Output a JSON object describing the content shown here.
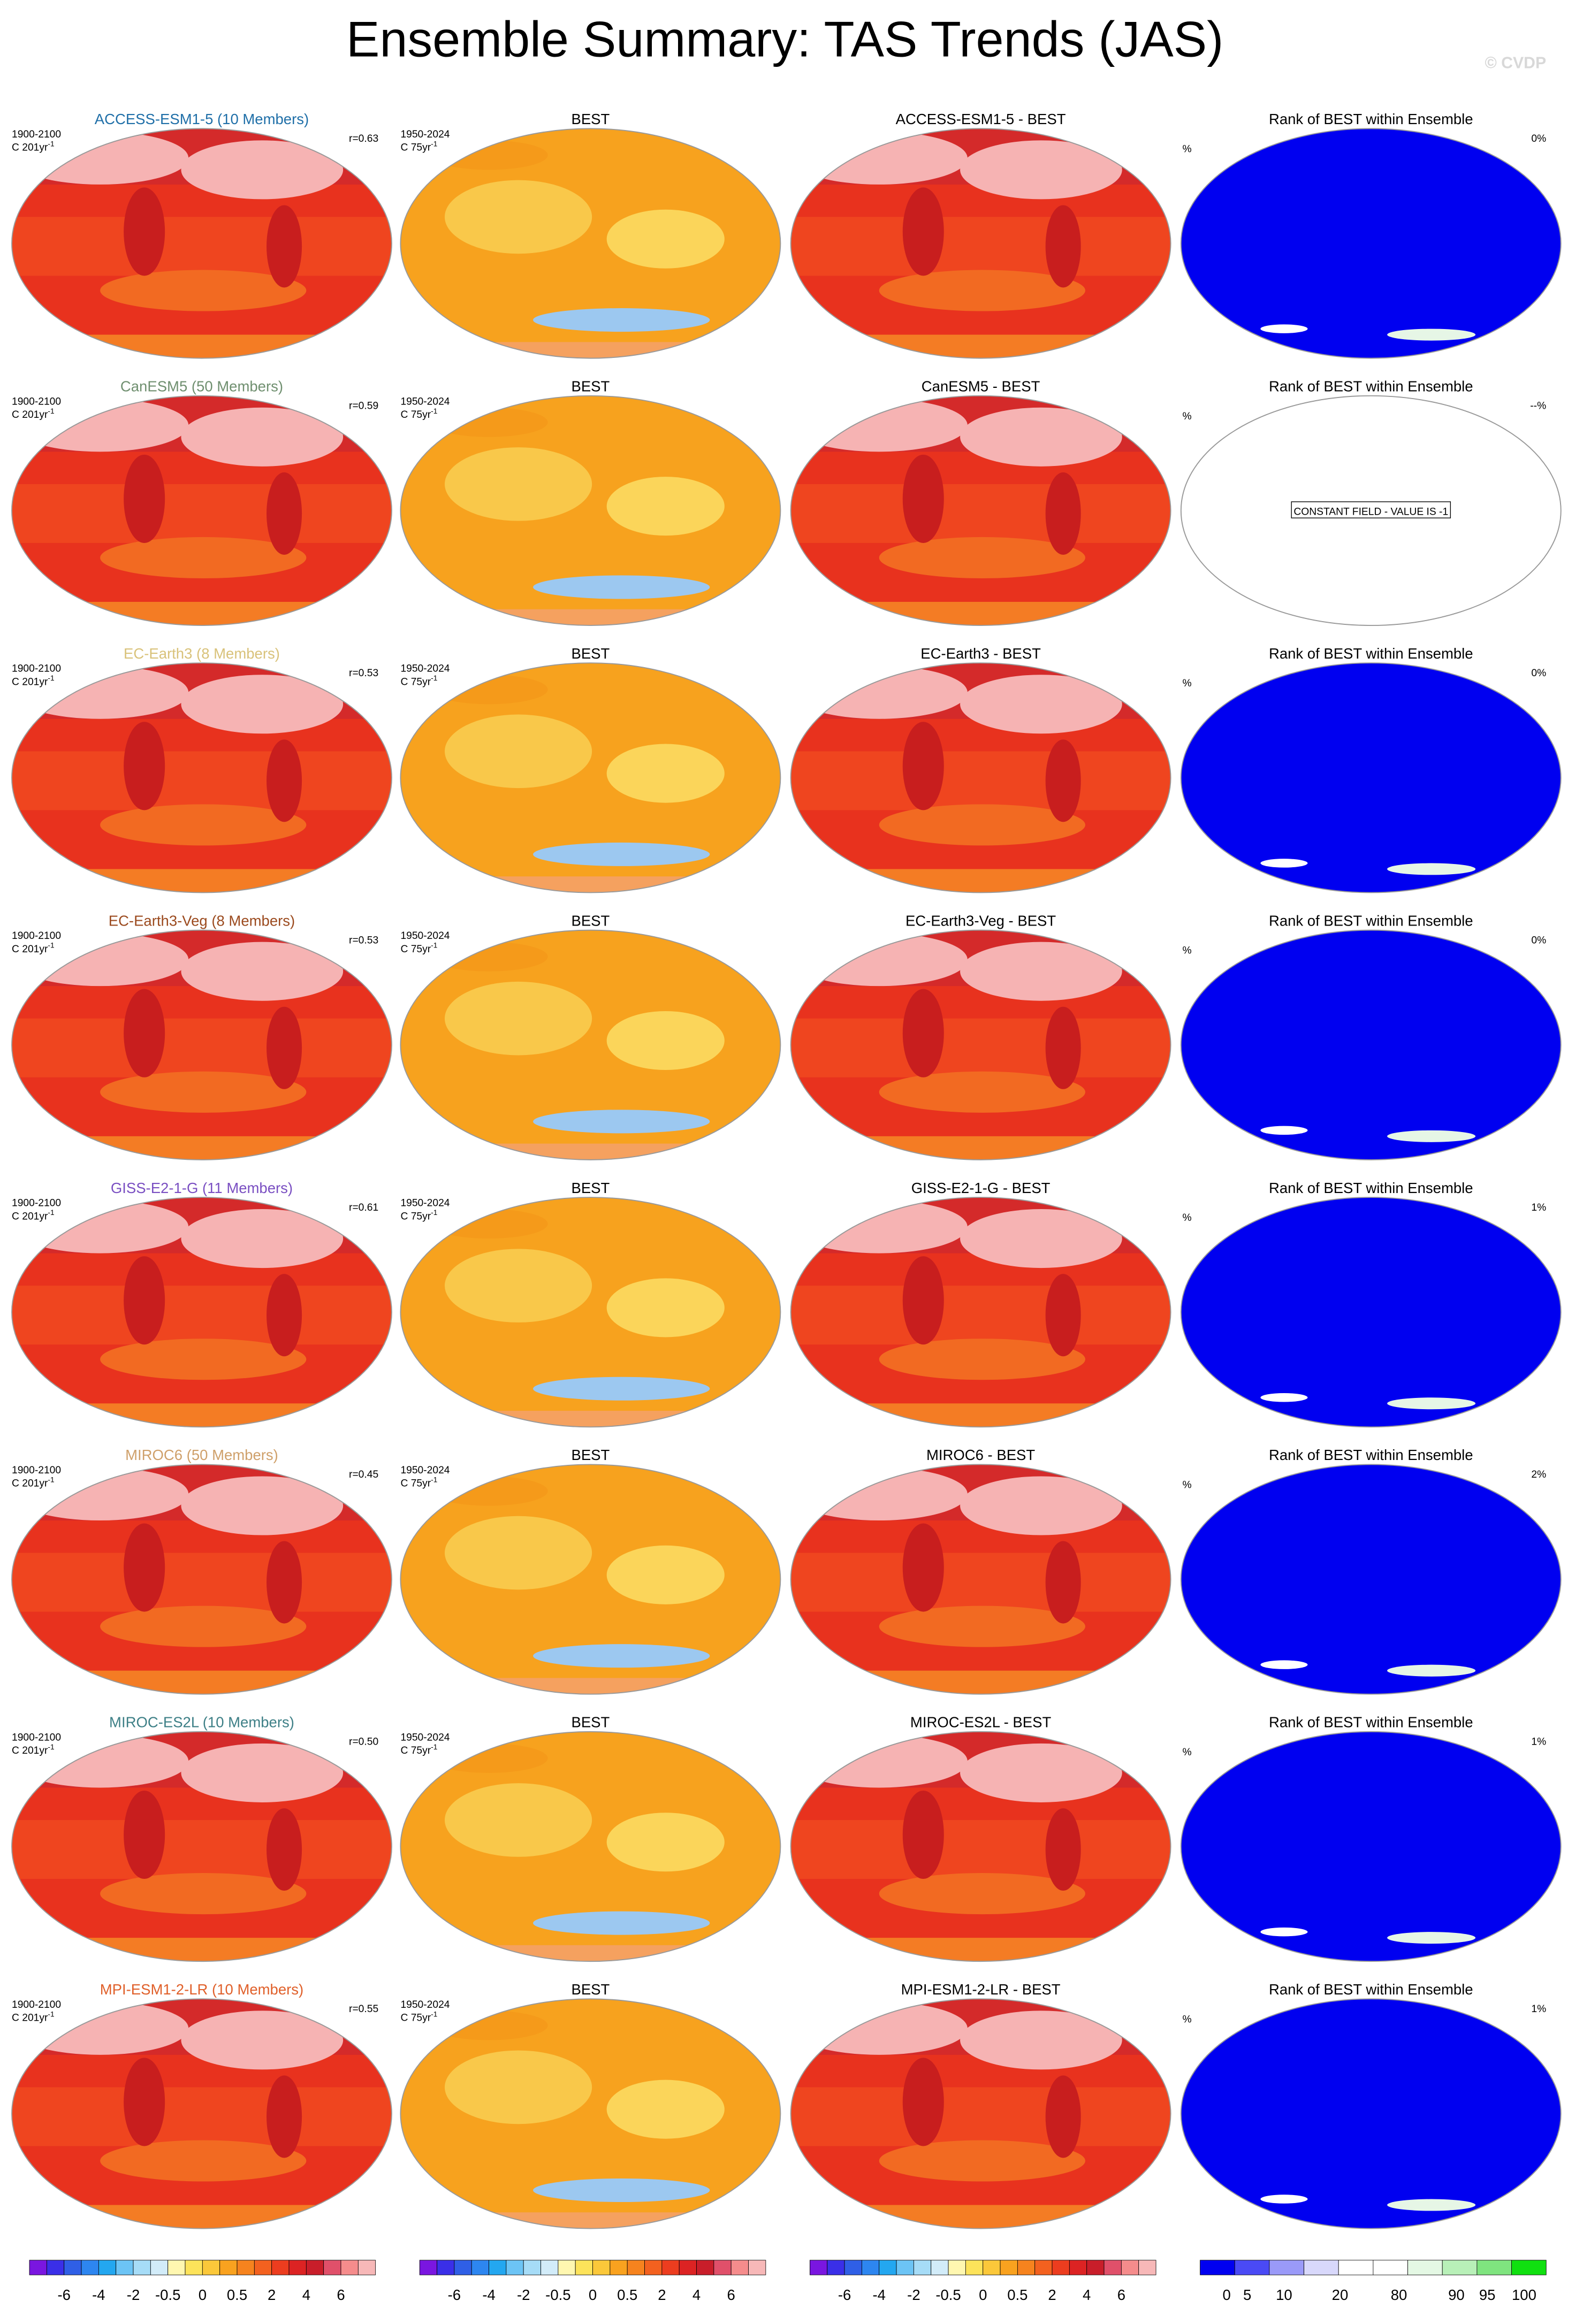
{
  "title": "Ensemble Summary: TAS Trends (JAS)",
  "watermark": "© CVDP",
  "rows": [
    {
      "model_title": "ACCESS-ESM1-5 (10 Members)",
      "model_color": "#1f6fa8",
      "model_period": "1900-2100",
      "model_units": "C 201yr",
      "model_units_sup": "-1",
      "r": "r=0.63",
      "obs_title": "BEST",
      "obs_period": "1950-2024",
      "obs_units": "C 75yr",
      "obs_units_sup": "-1",
      "diff_title": "ACCESS-ESM1-5 - BEST",
      "rank_title": "Rank of BEST within Ensemble",
      "rank_unit": "%",
      "rank_value": "0%"
    },
    {
      "model_title": "CanESM5 (50 Members)",
      "model_color": "#6f8f6f",
      "model_period": "1900-2100",
      "model_units": "C 201yr",
      "model_units_sup": "-1",
      "r": "r=0.59",
      "obs_title": "BEST",
      "obs_period": "1950-2024",
      "obs_units": "C 75yr",
      "obs_units_sup": "-1",
      "diff_title": "CanESM5 - BEST",
      "rank_title": "Rank of BEST within Ensemble",
      "rank_unit": "%",
      "rank_value": "--%",
      "rank_note": "CONSTANT FIELD - VALUE IS -1"
    },
    {
      "model_title": "EC-Earth3 (8 Members)",
      "model_color": "#d9c27a",
      "model_period": "1900-2100",
      "model_units": "C 201yr",
      "model_units_sup": "-1",
      "r": "r=0.53",
      "obs_title": "BEST",
      "obs_period": "1950-2024",
      "obs_units": "C 75yr",
      "obs_units_sup": "-1",
      "diff_title": "EC-Earth3 - BEST",
      "rank_title": "Rank of BEST within Ensemble",
      "rank_unit": "%",
      "rank_value": "0%"
    },
    {
      "model_title": "EC-Earth3-Veg (8 Members)",
      "model_color": "#9b4a1e",
      "model_period": "1900-2100",
      "model_units": "C 201yr",
      "model_units_sup": "-1",
      "r": "r=0.53",
      "obs_title": "BEST",
      "obs_period": "1950-2024",
      "obs_units": "C 75yr",
      "obs_units_sup": "-1",
      "diff_title": "EC-Earth3-Veg - BEST",
      "rank_title": "Rank of BEST within Ensemble",
      "rank_unit": "%",
      "rank_value": "0%"
    },
    {
      "model_title": "GISS-E2-1-G (11 Members)",
      "model_color": "#7a4fc2",
      "model_period": "1900-2100",
      "model_units": "C 201yr",
      "model_units_sup": "-1",
      "r": "r=0.61",
      "obs_title": "BEST",
      "obs_period": "1950-2024",
      "obs_units": "C 75yr",
      "obs_units_sup": "-1",
      "diff_title": "GISS-E2-1-G - BEST",
      "rank_title": "Rank of BEST within Ensemble",
      "rank_unit": "%",
      "rank_value": "1%"
    },
    {
      "model_title": "MIROC6 (50 Members)",
      "model_color": "#cfa06a",
      "model_period": "1900-2100",
      "model_units": "C 201yr",
      "model_units_sup": "-1",
      "r": "r=0.45",
      "obs_title": "BEST",
      "obs_period": "1950-2024",
      "obs_units": "C 75yr",
      "obs_units_sup": "-1",
      "diff_title": "MIROC6 - BEST",
      "rank_title": "Rank of BEST within Ensemble",
      "rank_unit": "%",
      "rank_value": "2%"
    },
    {
      "model_title": "MIROC-ES2L (10 Members)",
      "model_color": "#3d7f86",
      "model_period": "1900-2100",
      "model_units": "C 201yr",
      "model_units_sup": "-1",
      "r": "r=0.50",
      "obs_title": "BEST",
      "obs_period": "1950-2024",
      "obs_units": "C 75yr",
      "obs_units_sup": "-1",
      "diff_title": "MIROC-ES2L - BEST",
      "rank_title": "Rank of BEST within Ensemble",
      "rank_unit": "%",
      "rank_value": "1%"
    },
    {
      "model_title": "MPI-ESM1-2-LR (10 Members)",
      "model_color": "#e0602a",
      "model_period": "1900-2100",
      "model_units": "C 201yr",
      "model_units_sup": "-1",
      "r": "r=0.55",
      "obs_title": "BEST",
      "obs_period": "1950-2024",
      "obs_units": "C 75yr",
      "obs_units_sup": "-1",
      "diff_title": "MPI-ESM1-2-LR - BEST",
      "rank_title": "Rank of BEST within Ensemble",
      "rank_unit": "%",
      "rank_value": "1%"
    }
  ],
  "colorbars": {
    "trend_labels": [
      "-6",
      "-4",
      "-2",
      "-0.5",
      "0",
      "0.5",
      "2",
      "4",
      "6"
    ],
    "rank_labels": [
      "0",
      "5",
      "10",
      "20",
      "80",
      "90",
      "95",
      "100"
    ]
  }
}
